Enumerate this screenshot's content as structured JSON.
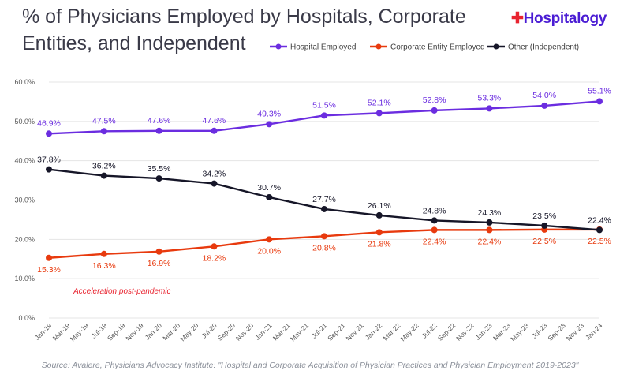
{
  "header": {
    "title": "% of Physicians Employed by Hospitals, Corporate Entities, and Independent",
    "logo_text": "Hospitalogy",
    "logo_colors": {
      "wordmark": "#4a1cd4",
      "cross": "#e8232f"
    }
  },
  "source": "Source: Avalere, Physicians Advocacy Institute: \"Hospital and Corporate Acquisition of Physician Practices and Physician Employment 2019-2023\"",
  "chart_data": {
    "type": "line",
    "x": [
      "Jan-19",
      "Jul-19",
      "Jan-20",
      "Jul-20",
      "Jan-21",
      "Jul-21",
      "Jan-22",
      "Jul-22",
      "Jan-23",
      "Jul-23",
      "Jan-24"
    ],
    "x_tick_labels": [
      "Jan-19",
      "Mar-19",
      "May-19",
      "Jul-19",
      "Sep-19",
      "Nov-19",
      "Jan-20",
      "Mar-20",
      "May-20",
      "Jul-20",
      "Sep-20",
      "Nov-20",
      "Jan-21",
      "Mar-21",
      "May-21",
      "Jul-21",
      "Sep-21",
      "Nov-21",
      "Jan-22",
      "Mar-22",
      "May-22",
      "Jul-22",
      "Sep-22",
      "Nov-22",
      "Jan-23",
      "Mar-23",
      "May-23",
      "Jul-23",
      "Sep-23",
      "Nov-23",
      "Jan-24"
    ],
    "y_ticks": [
      "0.0%",
      "10.0%",
      "20.0%",
      "30.0%",
      "40.0%",
      "50.0%",
      "60.0%"
    ],
    "ylim": [
      0,
      60
    ],
    "legend_position": "top-right",
    "grid": true,
    "series": [
      {
        "name": "Hospital Employed",
        "color": "#6b2de0",
        "values": [
          46.9,
          47.5,
          47.6,
          47.6,
          49.3,
          51.5,
          52.1,
          52.8,
          53.3,
          54.0,
          55.1
        ],
        "labels": [
          "46.9%",
          "47.5%",
          "47.6%",
          "47.6%",
          "49.3%",
          "51.5%",
          "52.1%",
          "52.8%",
          "53.3%",
          "54.0%",
          "55.1%"
        ]
      },
      {
        "name": "Corporate Entity Employed",
        "color": "#e83a0e",
        "values": [
          15.3,
          16.3,
          16.9,
          18.2,
          20.0,
          20.8,
          21.8,
          22.4,
          22.4,
          22.5,
          22.5
        ],
        "labels": [
          "15.3%",
          "16.3%",
          "16.9%",
          "18.2%",
          "20.0%",
          "20.8%",
          "21.8%",
          "22.4%",
          "22.4%",
          "22.5%",
          "22.5%"
        ]
      },
      {
        "name": "Other (Independent)",
        "color": "#161628",
        "values": [
          37.8,
          36.2,
          35.5,
          34.2,
          30.7,
          27.7,
          26.1,
          24.8,
          24.3,
          23.5,
          22.4
        ],
        "labels": [
          "37.8%",
          "36.2%",
          "35.5%",
          "34.2%",
          "30.7%",
          "27.7%",
          "26.1%",
          "24.8%",
          "24.3%",
          "23.5%",
          "22.4%"
        ]
      }
    ],
    "annotation": {
      "text": "Acceleration post-pandemic",
      "color": "#e8232f",
      "from": "Mar-20",
      "to": "Oct-21"
    }
  }
}
